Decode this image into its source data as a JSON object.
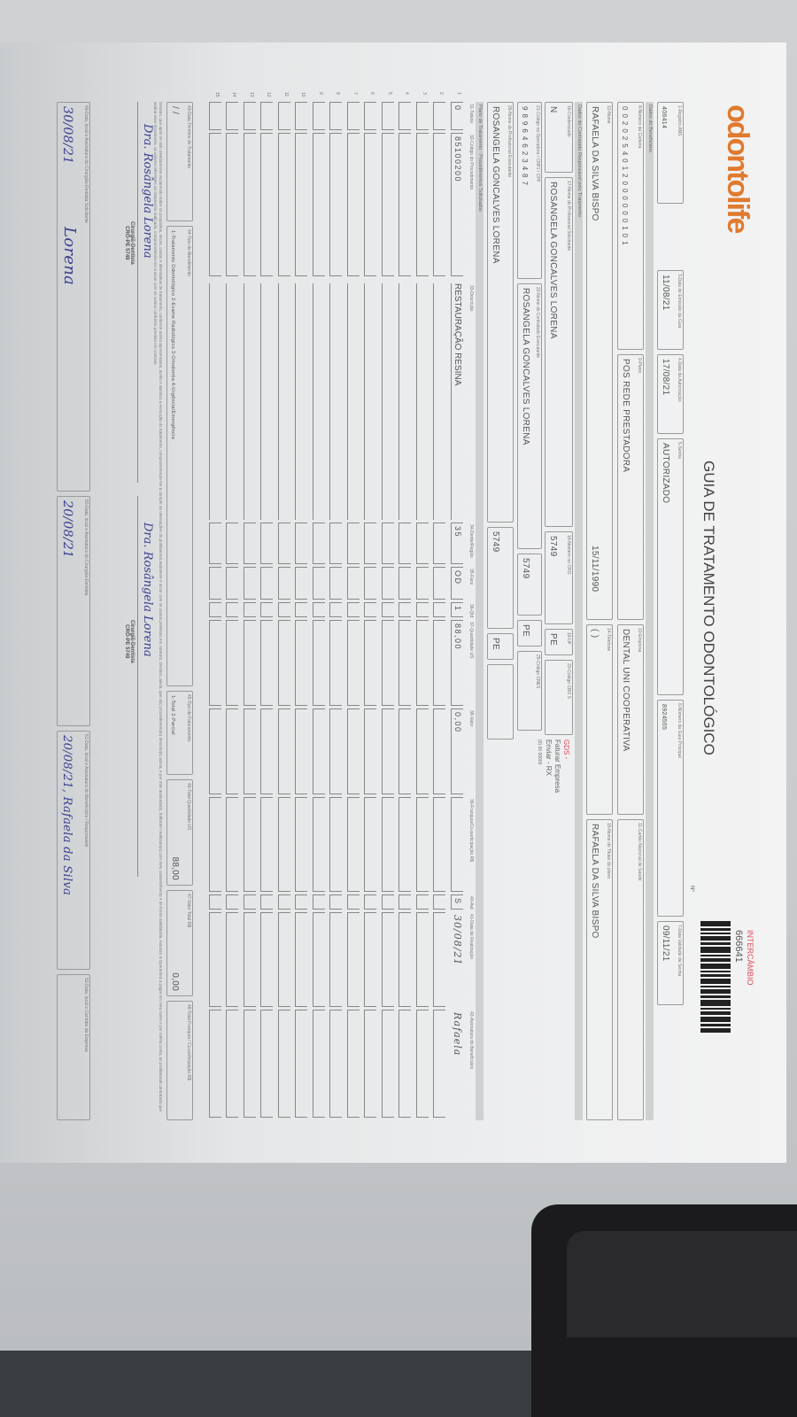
{
  "header": {
    "logo": "odontolife",
    "title": "GUIA DE TRATAMENTO ODONTOLÓGICO",
    "guide_number": "666641",
    "exchange_label": "INTERCÂMBIO",
    "n_label": "Nº",
    "brand_color": "#e07a2e",
    "accent_red": "#e04a5a"
  },
  "guide": {
    "registro_ans_label": "1-Registro ANS",
    "registro_ans": "406414",
    "data_emissao_label": "3-Data de Emissão da Guia",
    "data_emissao": "11/08/21",
    "data_autorizacao_label": "4-Data da Autorização",
    "data_autorizacao": "17/08/21",
    "senha_label": "5-Senha",
    "senha": "AUTORIZADO",
    "guia_principal_label": "6-Número da Guia Principal",
    "guia_principal": "8924565",
    "validade_senha_label": "7-Data Validade da Senha",
    "validade_senha": "09/11/21",
    "dados_beneficiario": "Dados do Beneficiário",
    "carteira_label": "8-Número da Carteira",
    "carteira": "0020254012000000101",
    "plano_label": "9-Plano",
    "plano": "POS REDE PRESTADORA",
    "empresa_label": "10-Empresa",
    "empresa": "DENTAL UNI COOPERATIVA",
    "cns_label": "11-Cartão Nacional de Saúde",
    "nome_label": "12-Nome",
    "nome": "RAFAELA DA SILVA BISPO",
    "nascimento": "15/11/1990",
    "telefone_label": "14-Telefone",
    "telefone": "(  )",
    "titular_label": "15-Nome do Titular do plano",
    "titular": "RAFAELA DA SILVA BISPO",
    "dados_contratado": "Dados do Contratado Responsável pelo Tratamento",
    "credenciado_label": "16-Credenciado",
    "credenciado": "N",
    "prof_solicitante_label": "17-Nome do Profissional Solicitante",
    "prof_solicitante": "ROSANGELA GONCALVES LORENA",
    "cro_label": "18-Número no CRO",
    "cro": "5749",
    "uf_label": "19-UF",
    "uf": "PE",
    "cbo_label": "20-Código CBO S",
    "codigo_contratado_label": "21-Código na Operadora / CNPJ / CPF",
    "codigo_contratado": "98964623487",
    "nome_contratado_label": "22-Nome do Contratado Executante",
    "nome_contratado": "ROSANGELA GONCALVES LORENA",
    "cnes_label": "25-Código CNES",
    "prof_executante_label": "26-Nome do Profissional Executante",
    "prof_executante": "ROSANGELA GONCALVES LORENA",
    "gds_label": "GDS -",
    "gds_line1": "Faturar Empresa",
    "gds_line2": "Enviar - RX",
    "gds_phone": "(0) 00 00000",
    "plano_tratamento": "Plano de Tratamento - Procedimentos Solicitados"
  },
  "table": {
    "headers": [
      "31-Tabela",
      "32-Código do Procedimento",
      "33-Descrição",
      "34-Dente/Região",
      "35-Face",
      "36-Qtd",
      "37-Quantidade US",
      "38-Valor",
      "39-Franquia/Co-participação R$",
      "40-Aut",
      "41-Data de Realização",
      "42-Assinatura do Beneficiário"
    ],
    "rows": [
      {
        "tabela": "0",
        "codigo": "85100200",
        "descricao": "RESTAURAÇÃO RESINA",
        "dente": "35",
        "face": "OD",
        "qtd": "1",
        "qtd_us": "88,00",
        "valor": "0,00",
        "franquia": "",
        "aut": "S",
        "data": "30/08/21",
        "assinatura": "Rafaela"
      }
    ],
    "empty_rows": 14
  },
  "footer": {
    "data_termino_label": "43-Data Término do Tratamento",
    "data_termino": "/  /",
    "tipo_atendimento_label": "44-Tipo de Atendimento",
    "tipo_atendimento_options": "1-Tratamento Odontológico  2-Exame Radiológico  3-Ortodontia  4-Urgência/Emergência",
    "tipo_faturamento_label": "45-Tipo de Faturamento",
    "tipo_faturamento_options": "1-Total  2-Parcial",
    "total_us_label": "46-Total Quantidade US",
    "total_us": "88,00",
    "valor_total_label": "47-Valor Total R$",
    "valor_total": "0,00",
    "total_franquia_label": "48-Total Franquia / Co-participação R$",
    "declaration": "Declaro, que após ter sido devidamente esclarecido sobre os propósitos, riscos, custos e alternativas de tratamento, conforme acima apresentados, aceito e autorizo a execução do tratamento, comprometendo-me a cumprir as orientações do profissional assistente e arcar com os custos previstos em contrato. Declaro, ainda, que o(s) procedimento(s) descrito(s) acima, e por mim assinado(s), foi/foram realizado(s) com meu consentimento e de forma satisfatória. Autorizo a Operadora a pagar em meu nome e por minha conta, ao profissional contratado que assina esse documento, os valores referentes ao tratamento realizado, comprometendo-me a arcar com os custos conforme previsto em contrato.",
    "dentist_signature": "Dra. Rosângela Lorena",
    "dentist_title": "Cirurgiã-Dentista",
    "dentist_cro": "CRO-PE 5749",
    "local_data_prof_label": "49-Data, local e Assinatura do Cirurgião-Dentista Solicitante",
    "local_data_prof": "30/08/21",
    "local_data_exec_label": "50-Data, local e Assinatura do Cirurgião-Dentista",
    "local_data_exec": "20/08/21",
    "local_data_benef_label": "51-Data, local e Assinatura do Beneficiário / Responsável",
    "local_data_benef": "20/08/21, Rafaela da Silva",
    "local_data_empresa_label": "52-Data, local e Carimbo da Empresa",
    "signature_short": "Lorena"
  }
}
